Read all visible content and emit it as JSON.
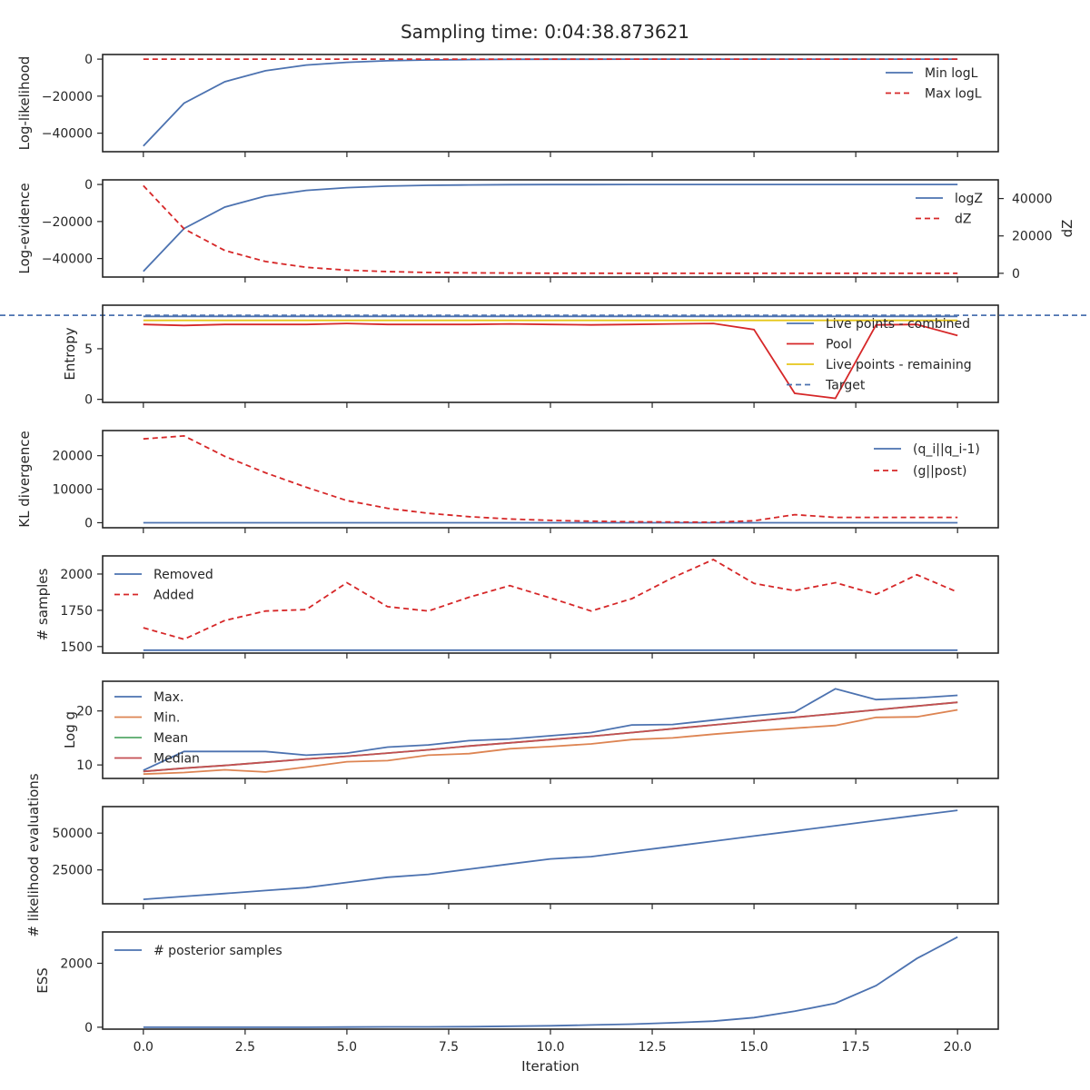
{
  "chart_data": [
    {
      "type": "line",
      "title": "Sampling time: 0:04:38.873621",
      "ylabel": "Log-likelihood",
      "xlabel": "",
      "xlim": [
        -1,
        21
      ],
      "ylim": [
        -50000,
        2500
      ],
      "yticks": [
        0,
        -20000,
        -40000
      ],
      "legend": "top-right",
      "series": [
        {
          "name": "Min logL",
          "color": "#4c72b0",
          "dash": false,
          "x": [
            0,
            1,
            2,
            3,
            4,
            5,
            6,
            7,
            8,
            9,
            10,
            11,
            12,
            13,
            14,
            15,
            16,
            17,
            18,
            19,
            20
          ],
          "values": [
            -46900,
            -23800,
            -12200,
            -6300,
            -3200,
            -1700,
            -900,
            -450,
            -250,
            -120,
            -60,
            -30,
            -15,
            -8,
            -4,
            -2,
            -1,
            0,
            0,
            0,
            0
          ]
        },
        {
          "name": "Max logL",
          "color": "#d62728",
          "dash": true,
          "x": [
            0,
            1,
            2,
            3,
            4,
            5,
            6,
            7,
            8,
            9,
            10,
            11,
            12,
            13,
            14,
            15,
            16,
            17,
            18,
            19,
            20
          ],
          "values": [
            0,
            0,
            0,
            0,
            0,
            0,
            0,
            0,
            0,
            0,
            0,
            0,
            0,
            0,
            0,
            0,
            0,
            0,
            0,
            0,
            0
          ]
        }
      ]
    },
    {
      "type": "line",
      "ylabel": "Log-evidence",
      "y2label": "dZ",
      "xlim": [
        -1,
        21
      ],
      "ylim": [
        -50000,
        2500
      ],
      "yticks": [
        0,
        -20000,
        -40000
      ],
      "y2lim": [
        -2000,
        50000
      ],
      "y2ticks": [
        0,
        20000,
        40000
      ],
      "legend": "top-right",
      "series": [
        {
          "name": "logZ",
          "color": "#4c72b0",
          "dash": false,
          "axis": "left",
          "x": [
            0,
            1,
            2,
            3,
            4,
            5,
            6,
            7,
            8,
            9,
            10,
            11,
            12,
            13,
            14,
            15,
            16,
            17,
            18,
            19,
            20
          ],
          "values": [
            -46900,
            -23800,
            -12200,
            -6300,
            -3200,
            -1700,
            -900,
            -450,
            -250,
            -120,
            -60,
            -30,
            -15,
            -8,
            -4,
            -2,
            -1,
            0,
            0,
            0,
            0
          ]
        },
        {
          "name": "dZ",
          "color": "#d62728",
          "dash": true,
          "axis": "right",
          "x": [
            0,
            1,
            2,
            3,
            4,
            5,
            6,
            7,
            8,
            9,
            10,
            11,
            12,
            13,
            14,
            15,
            16,
            17,
            18,
            19,
            20
          ],
          "values": [
            46900,
            23800,
            12200,
            6300,
            3200,
            1700,
            900,
            450,
            250,
            120,
            60,
            30,
            15,
            8,
            4,
            2,
            1,
            0,
            0,
            0,
            0
          ]
        }
      ]
    },
    {
      "type": "line",
      "ylabel": "Entropy",
      "xlim": [
        -1,
        21
      ],
      "ylim": [
        -0.3,
        9.3
      ],
      "yticks": [
        0,
        5
      ],
      "legend": "right",
      "series": [
        {
          "name": "Live points - combined",
          "color": "#4c72b0",
          "dash": false,
          "x": [
            0,
            1,
            2,
            3,
            4,
            5,
            6,
            7,
            8,
            9,
            10,
            11,
            12,
            13,
            14,
            15,
            16,
            17,
            18,
            19,
            20
          ],
          "values": [
            8.2,
            8.2,
            8.2,
            8.2,
            8.2,
            8.2,
            8.2,
            8.2,
            8.2,
            8.2,
            8.2,
            8.2,
            8.2,
            8.2,
            8.2,
            8.2,
            8.2,
            8.2,
            8.2,
            8.2,
            8.2
          ]
        },
        {
          "name": "Pool",
          "color": "#d62728",
          "dash": false,
          "x": [
            0,
            1,
            2,
            3,
            4,
            5,
            6,
            7,
            8,
            9,
            10,
            11,
            12,
            13,
            14,
            15,
            16,
            17,
            18,
            19,
            20
          ],
          "values": [
            7.4,
            7.3,
            7.4,
            7.4,
            7.4,
            7.5,
            7.4,
            7.4,
            7.4,
            7.45,
            7.4,
            7.35,
            7.4,
            7.45,
            7.5,
            6.9,
            0.6,
            0.1,
            7.35,
            7.4,
            6.3
          ]
        },
        {
          "name": "Live points - remaining",
          "color": "#e6c619",
          "dash": false,
          "x": [
            0,
            1,
            2,
            3,
            4,
            5,
            6,
            7,
            8,
            9,
            10,
            11,
            12,
            13,
            14,
            15,
            16,
            17,
            18,
            19,
            20
          ],
          "values": [
            7.8,
            7.8,
            7.8,
            7.8,
            7.8,
            7.8,
            7.8,
            7.8,
            7.8,
            7.8,
            7.8,
            7.8,
            7.8,
            7.8,
            7.8,
            7.8,
            7.8,
            7.8,
            7.8,
            7.8,
            7.8
          ]
        },
        {
          "name": "Target",
          "color": "#4c72b0",
          "dash": true,
          "hline": true,
          "x": [
            -1,
            21
          ],
          "values": [
            8.3,
            8.3
          ]
        }
      ]
    },
    {
      "type": "line",
      "ylabel": "KL divergence",
      "xlim": [
        -1,
        21
      ],
      "ylim": [
        -1500,
        27500
      ],
      "yticks": [
        0,
        10000,
        20000
      ],
      "legend": "top-right",
      "series": [
        {
          "name": "(q_i||q_i-1)",
          "color": "#4c72b0",
          "dash": false,
          "x": [
            0,
            1,
            2,
            3,
            4,
            5,
            6,
            7,
            8,
            9,
            10,
            11,
            12,
            13,
            14,
            15,
            16,
            17,
            18,
            19,
            20
          ],
          "values": [
            0,
            0,
            0,
            0,
            0,
            0,
            0,
            0,
            0,
            0,
            0,
            0,
            0,
            0,
            0,
            0,
            0,
            0,
            0,
            0,
            0
          ]
        },
        {
          "name": "(g||post)",
          "color": "#d62728",
          "dash": true,
          "x": [
            0,
            1,
            2,
            3,
            4,
            5,
            6,
            7,
            8,
            9,
            10,
            11,
            12,
            13,
            14,
            15,
            16,
            17,
            18,
            19,
            20
          ],
          "values": [
            25000,
            25900,
            19800,
            14900,
            10600,
            6600,
            4300,
            2800,
            1800,
            1100,
            700,
            450,
            300,
            200,
            150,
            600,
            2400,
            1600,
            1600,
            1600,
            1600
          ]
        }
      ]
    },
    {
      "type": "line",
      "ylabel": "# samples",
      "xlim": [
        -1,
        21
      ],
      "ylim": [
        1455,
        2125
      ],
      "yticks": [
        1500,
        1750,
        2000
      ],
      "legend": "top-left",
      "series": [
        {
          "name": "Removed",
          "color": "#4c72b0",
          "dash": false,
          "x": [
            0,
            1,
            2,
            3,
            4,
            5,
            6,
            7,
            8,
            9,
            10,
            11,
            12,
            13,
            14,
            15,
            16,
            17,
            18,
            19,
            20
          ],
          "values": [
            1475,
            1475,
            1475,
            1475,
            1475,
            1475,
            1475,
            1475,
            1475,
            1475,
            1475,
            1475,
            1475,
            1475,
            1475,
            1475,
            1475,
            1475,
            1475,
            1475,
            1475
          ]
        },
        {
          "name": "Added",
          "color": "#d62728",
          "dash": true,
          "x": [
            0,
            1,
            2,
            3,
            4,
            5,
            6,
            7,
            8,
            9,
            10,
            11,
            12,
            13,
            14,
            15,
            16,
            17,
            18,
            19,
            20
          ],
          "values": [
            1630,
            1550,
            1680,
            1745,
            1755,
            1940,
            1775,
            1745,
            1840,
            1920,
            1835,
            1745,
            1830,
            1975,
            2100,
            1935,
            1885,
            1940,
            1860,
            1995,
            1875
          ]
        }
      ]
    },
    {
      "type": "line",
      "ylabel": "Log g",
      "xlim": [
        -1,
        21
      ],
      "ylim": [
        7.5,
        25.5
      ],
      "yticks": [
        10,
        20
      ],
      "legend": "top-left",
      "series": [
        {
          "name": "Max.",
          "color": "#4c72b0",
          "dash": false,
          "x": [
            0,
            1,
            2,
            3,
            4,
            5,
            6,
            7,
            8,
            9,
            10,
            11,
            12,
            13,
            14,
            15,
            16,
            17,
            18,
            19,
            20
          ],
          "values": [
            9.0,
            12.5,
            12.5,
            12.5,
            11.8,
            12.2,
            13.3,
            13.7,
            14.5,
            14.8,
            15.4,
            16.0,
            17.4,
            17.5,
            18.3,
            19.1,
            19.8,
            24.1,
            22.1,
            22.4,
            22.9
          ]
        },
        {
          "name": "Min.",
          "color": "#dd8452",
          "dash": false,
          "x": [
            0,
            1,
            2,
            3,
            4,
            5,
            6,
            7,
            8,
            9,
            10,
            11,
            12,
            13,
            14,
            15,
            16,
            17,
            18,
            19,
            20
          ],
          "values": [
            8.3,
            8.6,
            9.1,
            8.7,
            9.6,
            10.6,
            10.8,
            11.8,
            12.1,
            13.0,
            13.4,
            13.9,
            14.7,
            15.0,
            15.7,
            16.3,
            16.8,
            17.3,
            18.8,
            18.9,
            20.2
          ]
        },
        {
          "name": "Mean",
          "color": "#55a868",
          "dash": false,
          "x": [
            0,
            1,
            2,
            3,
            4,
            5,
            6,
            7,
            8,
            9,
            10,
            11,
            12,
            13,
            14,
            15,
            16,
            17,
            18,
            19,
            20
          ],
          "values": [
            8.8,
            9.4,
            9.9,
            10.5,
            11.1,
            11.6,
            12.2,
            12.8,
            13.5,
            14.1,
            14.7,
            15.3,
            16.0,
            16.7,
            17.4,
            18.1,
            18.8,
            19.5,
            20.2,
            20.9,
            21.6
          ]
        },
        {
          "name": "Median",
          "color": "#c44e52",
          "dash": false,
          "x": [
            0,
            1,
            2,
            3,
            4,
            5,
            6,
            7,
            8,
            9,
            10,
            11,
            12,
            13,
            14,
            15,
            16,
            17,
            18,
            19,
            20
          ],
          "values": [
            8.8,
            9.4,
            9.9,
            10.5,
            11.1,
            11.6,
            12.2,
            12.8,
            13.5,
            14.1,
            14.7,
            15.3,
            16.0,
            16.7,
            17.4,
            18.1,
            18.8,
            19.5,
            20.2,
            20.9,
            21.6
          ]
        }
      ]
    },
    {
      "type": "line",
      "ylabel": "# likelihood evaluations",
      "xlim": [
        -1,
        21
      ],
      "ylim": [
        2000,
        68000
      ],
      "yticks": [
        25000,
        50000
      ],
      "series": [
        {
          "name": "",
          "color": "#4c72b0",
          "dash": false,
          "x": [
            0,
            1,
            2,
            3,
            4,
            5,
            6,
            7,
            8,
            9,
            10,
            11,
            12,
            13,
            14,
            15,
            16,
            17,
            18,
            19,
            20
          ],
          "values": [
            5000,
            7000,
            9000,
            11000,
            13000,
            16500,
            20000,
            22000,
            25500,
            29000,
            32500,
            34000,
            37500,
            41000,
            44500,
            48000,
            51500,
            55000,
            58500,
            62000,
            65500
          ]
        }
      ]
    },
    {
      "type": "line",
      "ylabel": "ESS",
      "xlabel": "Iteration",
      "xlim": [
        -1,
        21
      ],
      "ylim": [
        -60,
        2980
      ],
      "yticks": [
        0,
        2000
      ],
      "xticks": [
        "0.0",
        "2.5",
        "5.0",
        "7.5",
        "10.0",
        "12.5",
        "15.0",
        "17.5",
        "20.0"
      ],
      "xtick_values": [
        0,
        2.5,
        5,
        7.5,
        10,
        12.5,
        15,
        17.5,
        20
      ],
      "legend": "top-left",
      "series": [
        {
          "name": "# posterior samples",
          "color": "#4c72b0",
          "dash": false,
          "x": [
            0,
            1,
            2,
            3,
            4,
            5,
            6,
            7,
            8,
            9,
            10,
            11,
            12,
            13,
            14,
            15,
            16,
            17,
            18,
            19,
            20
          ],
          "values": [
            0,
            0,
            0,
            0,
            0,
            5,
            10,
            12,
            18,
            30,
            45,
            70,
            95,
            140,
            190,
            300,
            500,
            750,
            1300,
            2150,
            2820
          ]
        }
      ]
    }
  ]
}
